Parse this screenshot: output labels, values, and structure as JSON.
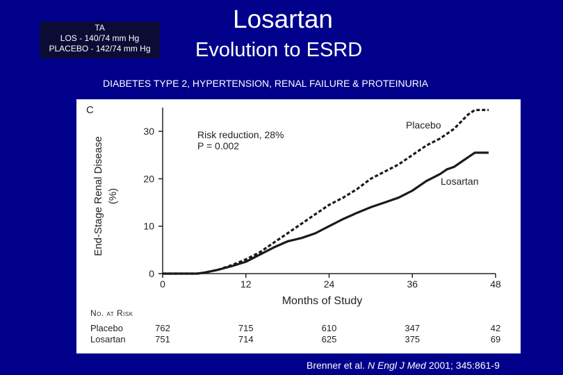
{
  "ta_box": {
    "title": "TA",
    "line1": "LOS - 140/74 mm Hg",
    "line2": "PLACEBO - 142/74 mm Hg"
  },
  "header": {
    "title": "Losartan",
    "subtitle": "Evolution to ESRD",
    "description": "DIABETES TYPE 2, HYPERTENSION, RENAL FAILURE & PROTEINURIA"
  },
  "citation": {
    "authors": "Brenner et al. ",
    "journal": "N Engl J Med",
    "details": " 2001; 345:861-9"
  },
  "chart_data": {
    "type": "line",
    "panel_label": "C",
    "xlabel": "Months of Study",
    "ylabel": "End-Stage Renal Disease (%)",
    "xlim": [
      0,
      48
    ],
    "ylim": [
      0,
      35
    ],
    "x_ticks": [
      0,
      12,
      24,
      36,
      48
    ],
    "y_ticks": [
      0,
      10,
      20,
      30
    ],
    "annotation": {
      "line1": "Risk reduction, 28%",
      "line2": "P = 0.002"
    },
    "series": [
      {
        "name": "Placebo",
        "style": "dashed",
        "x": [
          0,
          3,
          5,
          6,
          8,
          10,
          12,
          14,
          16,
          18,
          20,
          22,
          24,
          26,
          28,
          30,
          32,
          34,
          36,
          38,
          40,
          41,
          42,
          43,
          44,
          45,
          46,
          47
        ],
        "y": [
          0,
          0,
          0,
          0.2,
          0.8,
          1.8,
          3,
          4.5,
          6.5,
          8.5,
          10.5,
          12.5,
          14.5,
          16,
          17.8,
          20,
          21.5,
          23,
          25,
          27,
          28.5,
          29.5,
          30.5,
          32,
          33.5,
          34.5,
          34.5,
          34.5
        ]
      },
      {
        "name": "Losartan",
        "style": "solid",
        "x": [
          0,
          3,
          5,
          6,
          8,
          10,
          12,
          14,
          16,
          18,
          20,
          22,
          24,
          26,
          28,
          30,
          32,
          34,
          36,
          38,
          40,
          41,
          42,
          43,
          44,
          45,
          46,
          47
        ],
        "y": [
          0,
          0,
          0,
          0.2,
          0.8,
          1.6,
          2.5,
          4,
          5.5,
          6.8,
          7.5,
          8.5,
          10,
          11.5,
          12.8,
          14,
          15,
          16,
          17.5,
          19.5,
          21,
          22,
          22.5,
          23.5,
          24.5,
          25.5,
          25.5,
          25.5
        ]
      }
    ],
    "at_risk": {
      "header": "No. at Risk",
      "months": [
        0,
        12,
        24,
        36,
        48
      ],
      "rows": [
        {
          "label": "Placebo",
          "values": [
            762,
            715,
            610,
            347,
            42
          ]
        },
        {
          "label": "Losartan",
          "values": [
            751,
            714,
            625,
            375,
            69
          ]
        }
      ]
    }
  }
}
